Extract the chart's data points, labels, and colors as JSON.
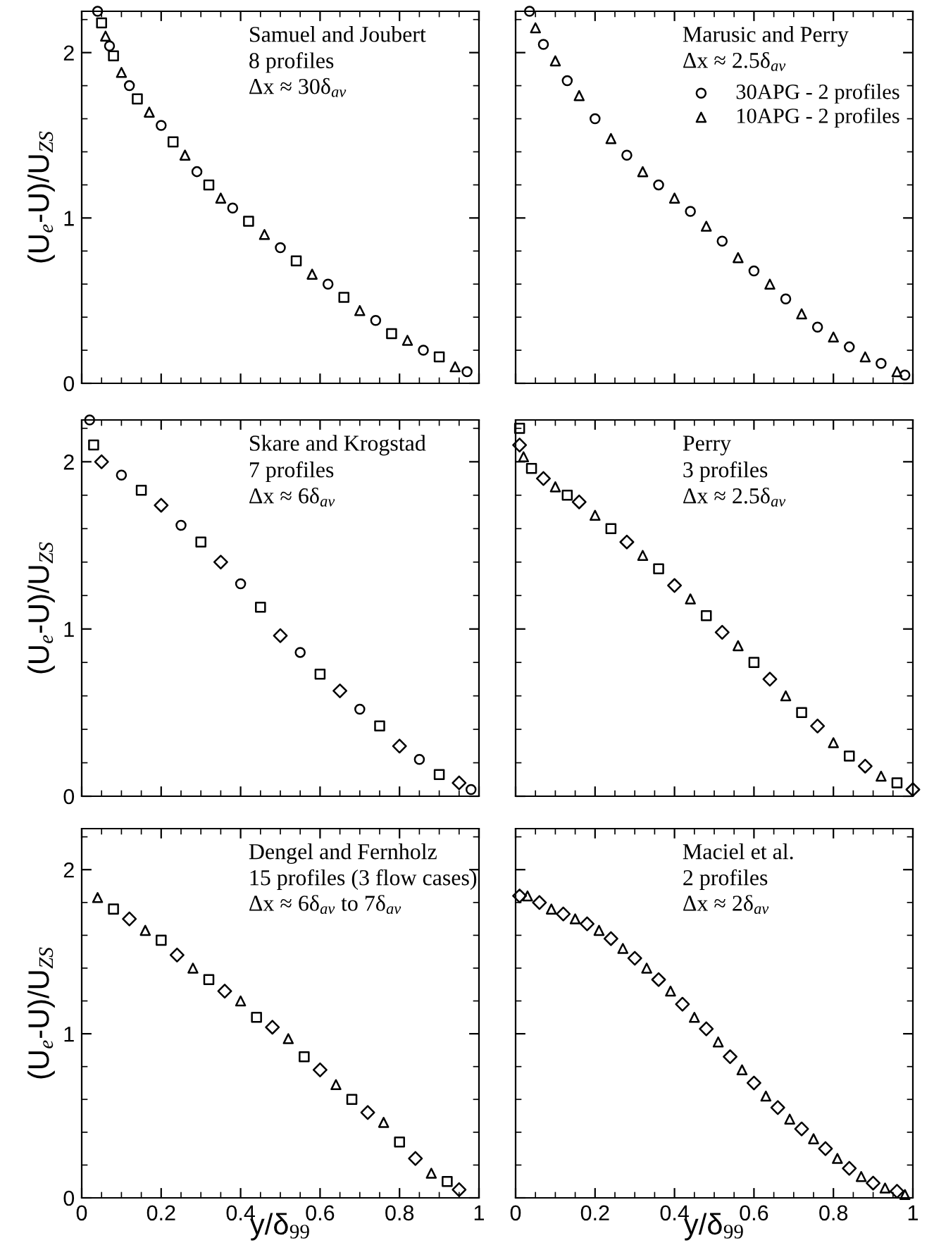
{
  "chart_data": [
    {
      "type": "scatter",
      "ylabel": "(U$_{e}$-U)/U$_{ZS}$",
      "annotations": [
        "Samuel and Joubert",
        "8 profiles",
        "Δx ≈ 30δ$_{av}$"
      ],
      "xlim": [
        0,
        1
      ],
      "ylim": [
        0,
        2.25
      ],
      "xticks": [
        0,
        0.2,
        0.4,
        0.6,
        0.8,
        1
      ],
      "yticks": [
        0,
        1,
        2
      ],
      "tick_labels": "y",
      "grid": false,
      "legend": false,
      "series": [
        {
          "color": "#000000",
          "marker": "circle",
          "x": [
            0.04,
            0.07,
            0.12,
            0.2,
            0.29,
            0.38,
            0.5,
            0.62,
            0.74,
            0.86,
            0.97
          ],
          "values": [
            2.25,
            2.04,
            1.8,
            1.56,
            1.28,
            1.06,
            0.82,
            0.6,
            0.38,
            0.2,
            0.07
          ]
        },
        {
          "color": "#000000",
          "marker": "square",
          "x": [
            0.05,
            0.08,
            0.14,
            0.23,
            0.32,
            0.42,
            0.54,
            0.66,
            0.78,
            0.9
          ],
          "values": [
            2.18,
            1.98,
            1.72,
            1.46,
            1.2,
            0.98,
            0.74,
            0.52,
            0.3,
            0.16
          ]
        },
        {
          "color": "#000000",
          "marker": "triangle",
          "x": [
            0.06,
            0.1,
            0.17,
            0.26,
            0.35,
            0.46,
            0.58,
            0.7,
            0.82,
            0.94
          ],
          "values": [
            2.1,
            1.88,
            1.64,
            1.38,
            1.12,
            0.9,
            0.66,
            0.44,
            0.26,
            0.1
          ]
        }
      ]
    },
    {
      "type": "scatter",
      "annotations": [
        "Marusic and Perry",
        "Δx ≈ 2.5δ$_{av}$"
      ],
      "xlim": [
        0,
        1
      ],
      "ylim": [
        0,
        2.25
      ],
      "xticks": [
        0,
        0.2,
        0.4,
        0.6,
        0.8,
        1
      ],
      "yticks": [
        0,
        1,
        2
      ],
      "tick_labels": false,
      "grid": false,
      "legend": "top right",
      "series": [
        {
          "name": "30APG - 2 profiles",
          "color": "#000000",
          "marker": "circle",
          "x": [
            0.035,
            0.07,
            0.13,
            0.2,
            0.28,
            0.36,
            0.44,
            0.52,
            0.6,
            0.68,
            0.76,
            0.84,
            0.92,
            0.98
          ],
          "values": [
            2.25,
            2.05,
            1.83,
            1.6,
            1.38,
            1.2,
            1.04,
            0.86,
            0.68,
            0.51,
            0.34,
            0.22,
            0.12,
            0.05
          ]
        },
        {
          "name": "10APG - 2 profiles",
          "color": "#000000",
          "marker": "triangle",
          "x": [
            0.05,
            0.1,
            0.16,
            0.24,
            0.32,
            0.4,
            0.48,
            0.56,
            0.64,
            0.72,
            0.8,
            0.88,
            0.96
          ],
          "values": [
            2.15,
            1.95,
            1.74,
            1.48,
            1.28,
            1.12,
            0.95,
            0.76,
            0.6,
            0.42,
            0.28,
            0.16,
            0.07
          ]
        }
      ]
    },
    {
      "type": "scatter",
      "ylabel": "(U$_{e}$-U)/U$_{ZS}$",
      "annotations": [
        "Skare and Krogstad",
        "7 profiles",
        "Δx ≈ 6δ$_{av}$"
      ],
      "xlim": [
        0,
        1
      ],
      "ylim": [
        0,
        2.25
      ],
      "xticks": [
        0,
        0.2,
        0.4,
        0.6,
        0.8,
        1
      ],
      "yticks": [
        0,
        1,
        2
      ],
      "tick_labels": "y",
      "grid": false,
      "legend": false,
      "series": [
        {
          "color": "#000000",
          "marker": "circle",
          "x": [
            0.02,
            0.1,
            0.25,
            0.4,
            0.55,
            0.7,
            0.85,
            0.98
          ],
          "values": [
            2.25,
            1.92,
            1.62,
            1.27,
            0.86,
            0.52,
            0.22,
            0.04
          ]
        },
        {
          "color": "#000000",
          "marker": "square",
          "x": [
            0.03,
            0.15,
            0.3,
            0.45,
            0.6,
            0.75,
            0.9
          ],
          "values": [
            2.1,
            1.83,
            1.52,
            1.13,
            0.73,
            0.42,
            0.13
          ]
        },
        {
          "color": "#000000",
          "marker": "diamond",
          "x": [
            0.05,
            0.2,
            0.35,
            0.5,
            0.65,
            0.8,
            0.95
          ],
          "values": [
            2.0,
            1.74,
            1.4,
            0.96,
            0.63,
            0.3,
            0.08
          ]
        }
      ]
    },
    {
      "type": "scatter",
      "annotations": [
        "Perry",
        "3 profiles",
        "Δx ≈ 2.5δ$_{av}$"
      ],
      "xlim": [
        0,
        1
      ],
      "ylim": [
        0,
        2.25
      ],
      "xticks": [
        0,
        0.2,
        0.4,
        0.6,
        0.8,
        1
      ],
      "yticks": [
        0,
        1,
        2
      ],
      "tick_labels": false,
      "grid": false,
      "legend": false,
      "series": [
        {
          "color": "#000000",
          "marker": "square",
          "x": [
            0.01,
            0.04,
            0.13,
            0.24,
            0.36,
            0.48,
            0.6,
            0.72,
            0.84,
            0.96
          ],
          "values": [
            2.2,
            1.96,
            1.8,
            1.6,
            1.36,
            1.08,
            0.8,
            0.5,
            0.24,
            0.08
          ]
        },
        {
          "color": "#000000",
          "marker": "diamond",
          "x": [
            0.01,
            0.07,
            0.16,
            0.28,
            0.4,
            0.52,
            0.64,
            0.76,
            0.88,
            1.0
          ],
          "values": [
            2.1,
            1.9,
            1.76,
            1.52,
            1.26,
            0.98,
            0.7,
            0.42,
            0.18,
            0.04
          ]
        },
        {
          "color": "#000000",
          "marker": "triangle",
          "x": [
            0.02,
            0.1,
            0.2,
            0.32,
            0.44,
            0.56,
            0.68,
            0.8,
            0.92
          ],
          "values": [
            2.03,
            1.85,
            1.68,
            1.44,
            1.18,
            0.9,
            0.6,
            0.32,
            0.12
          ]
        }
      ]
    },
    {
      "type": "scatter",
      "xlabel": "y/δ$_{99}$",
      "ylabel": "(U$_{e}$-U)/U$_{ZS}$",
      "annotations": [
        "Dengel and Fernholz",
        "15 profiles (3 flow cases)",
        "Δx ≈ 6δ$_{av}$ to 7δ$_{av}$"
      ],
      "xlim": [
        0,
        1
      ],
      "ylim": [
        0,
        2.25
      ],
      "xticks": [
        0,
        0.2,
        0.4,
        0.6,
        0.8,
        1
      ],
      "yticks": [
        0,
        1,
        2
      ],
      "grid": false,
      "legend": false,
      "series": [
        {
          "color": "#000000",
          "marker": "triangle",
          "x": [
            0.04,
            0.16,
            0.28,
            0.4,
            0.52,
            0.64,
            0.76,
            0.88
          ],
          "values": [
            1.83,
            1.63,
            1.4,
            1.2,
            0.97,
            0.69,
            0.46,
            0.15
          ]
        },
        {
          "color": "#000000",
          "marker": "square",
          "x": [
            0.08,
            0.2,
            0.32,
            0.44,
            0.56,
            0.68,
            0.8,
            0.92
          ],
          "values": [
            1.76,
            1.57,
            1.33,
            1.1,
            0.86,
            0.6,
            0.34,
            0.1
          ]
        },
        {
          "color": "#000000",
          "marker": "diamond",
          "x": [
            0.12,
            0.24,
            0.36,
            0.48,
            0.6,
            0.72,
            0.84,
            0.95
          ],
          "values": [
            1.7,
            1.48,
            1.26,
            1.04,
            0.78,
            0.52,
            0.24,
            0.05
          ]
        }
      ]
    },
    {
      "type": "scatter",
      "xlabel": "y/δ$_{99}$",
      "annotations": [
        "Maciel et al.",
        "2 profiles",
        "Δx ≈ 2δ$_{av}$"
      ],
      "xlim": [
        0,
        1
      ],
      "ylim": [
        0,
        2.25
      ],
      "xticks": [
        0,
        0.2,
        0.4,
        0.6,
        0.8,
        1
      ],
      "yticks": [
        0,
        1,
        2
      ],
      "tick_labels": "x",
      "grid": false,
      "legend": false,
      "series": [
        {
          "color": "#000000",
          "marker": "diamond",
          "x": [
            0.01,
            0.06,
            0.12,
            0.18,
            0.24,
            0.3,
            0.36,
            0.42,
            0.48,
            0.54,
            0.6,
            0.66,
            0.72,
            0.78,
            0.84,
            0.9,
            0.96
          ],
          "values": [
            1.84,
            1.8,
            1.73,
            1.67,
            1.58,
            1.46,
            1.33,
            1.18,
            1.03,
            0.86,
            0.7,
            0.55,
            0.42,
            0.3,
            0.18,
            0.09,
            0.04
          ]
        },
        {
          "color": "#000000",
          "marker": "triangle",
          "x": [
            0.03,
            0.09,
            0.15,
            0.21,
            0.27,
            0.33,
            0.39,
            0.45,
            0.51,
            0.57,
            0.63,
            0.69,
            0.75,
            0.81,
            0.87,
            0.93,
            0.98
          ],
          "values": [
            1.84,
            1.76,
            1.7,
            1.63,
            1.52,
            1.4,
            1.26,
            1.1,
            0.95,
            0.78,
            0.62,
            0.48,
            0.36,
            0.24,
            0.13,
            0.06,
            0.02
          ]
        }
      ]
    }
  ]
}
